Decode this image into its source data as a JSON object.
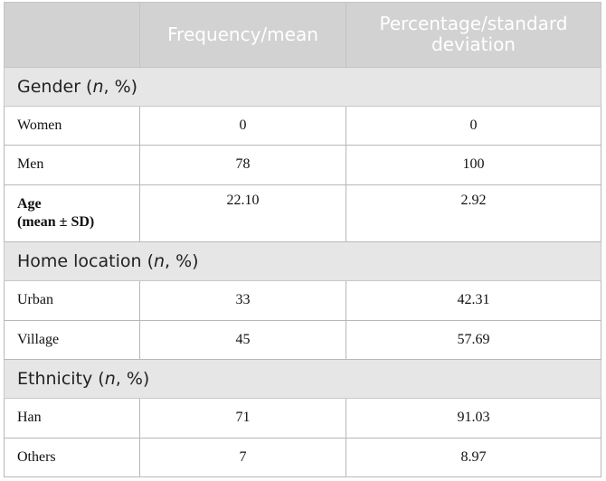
{
  "header": {
    "col1": "",
    "col2": "Frequency/mean",
    "col3_line1": "Percentage/standard",
    "col3_line2": "deviation"
  },
  "sections": {
    "gender": {
      "label": "Gender (",
      "n": "n",
      "suffix": ", %)"
    },
    "home": {
      "label": "Home location (",
      "n": "n",
      "suffix": ", %)"
    },
    "ethnicity": {
      "label": "Ethnicity (",
      "n": "n",
      "suffix": ", %)"
    }
  },
  "rows": {
    "women": {
      "label": "Women",
      "freq": "0",
      "pct": "0"
    },
    "men": {
      "label": "Men",
      "freq": "78",
      "pct": "100"
    },
    "age": {
      "label_line1": "Age",
      "label_line2": "(mean ± SD)",
      "freq": "22.10",
      "pct": "2.92"
    },
    "urban": {
      "label": "Urban",
      "freq": "33",
      "pct": "42.31"
    },
    "village": {
      "label": "Village",
      "freq": "45",
      "pct": "57.69"
    },
    "han": {
      "label": "Han",
      "freq": "71",
      "pct": "91.03"
    },
    "others": {
      "label": "Others",
      "freq": "7",
      "pct": "8.97"
    }
  }
}
